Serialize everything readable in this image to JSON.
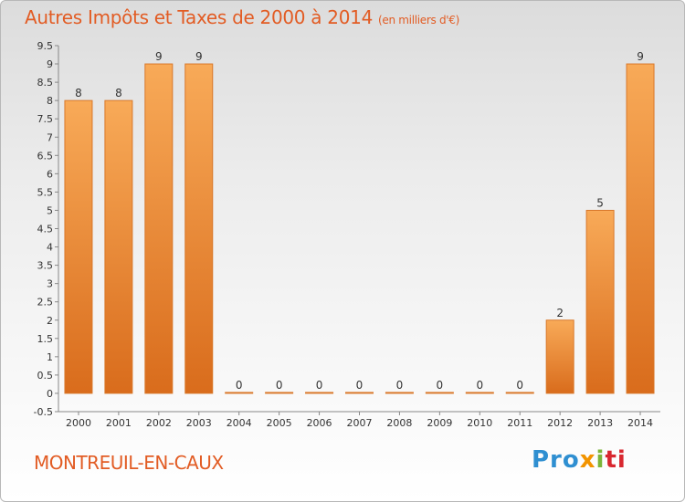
{
  "chart_data": {
    "type": "bar",
    "title": "Autres Impôts et Taxes de 2000 à 2014",
    "subtitle": "(en milliers d'€)",
    "xlabel": "",
    "ylabel": "",
    "categories": [
      "2000",
      "2001",
      "2002",
      "2003",
      "2004",
      "2005",
      "2006",
      "2007",
      "2008",
      "2009",
      "2010",
      "2011",
      "2012",
      "2013",
      "2014"
    ],
    "values": [
      8,
      8,
      9,
      9,
      0,
      0,
      0,
      0,
      0,
      0,
      0,
      0,
      2,
      5,
      9
    ],
    "value_labels": [
      "8",
      "8",
      "9",
      "9",
      "0",
      "0",
      "0",
      "0",
      "0",
      "0",
      "0",
      "0",
      "2",
      "5",
      "9"
    ],
    "ylim": [
      -0.5,
      9.5
    ],
    "y_ticks": [
      "-0.5",
      "0",
      "0.5",
      "1",
      "1.5",
      "2",
      "2.5",
      "3",
      "3.5",
      "4",
      "4.5",
      "5",
      "5.5",
      "6",
      "6.5",
      "7",
      "7.5",
      "8",
      "8.5",
      "9",
      "9.5"
    ],
    "grid": false,
    "bar_color": "#f39a3c",
    "bar_edge_color": "#d9782a"
  },
  "commune": "MONTREUIL-EN-CAUX",
  "logo": {
    "p1": "Pro",
    "p2": "x",
    "p3": "i",
    "p4": "ti"
  }
}
